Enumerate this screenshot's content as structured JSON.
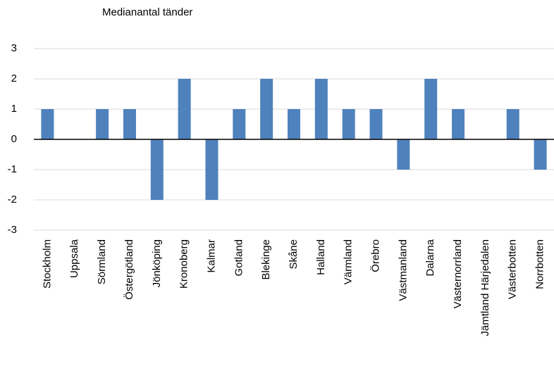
{
  "chart_data": {
    "type": "bar",
    "title": "Medianantal tänder",
    "categories": [
      "Stockholm",
      "Uppsala",
      "Sörmland",
      "Östergötland",
      "Jönköping",
      "Kronoberg",
      "Kalmar",
      "Gotland",
      "Blekinge",
      "Skåne",
      "Halland",
      "Värmland",
      "Örebro",
      "Västmanland",
      "Dalarna",
      "Västernorrland",
      "Jämtland Härjedalen",
      "Västerbotten",
      "Norrbotten"
    ],
    "values": [
      1,
      0,
      1,
      1,
      -2,
      2,
      -2,
      1,
      2,
      1,
      2,
      1,
      1,
      -1,
      2,
      1,
      0,
      1,
      -1
    ],
    "color": "#4f81bd",
    "ylim": [
      -3,
      3
    ],
    "yticks": [
      -3,
      -2,
      -1,
      0,
      1,
      2,
      3
    ],
    "grid": true
  }
}
